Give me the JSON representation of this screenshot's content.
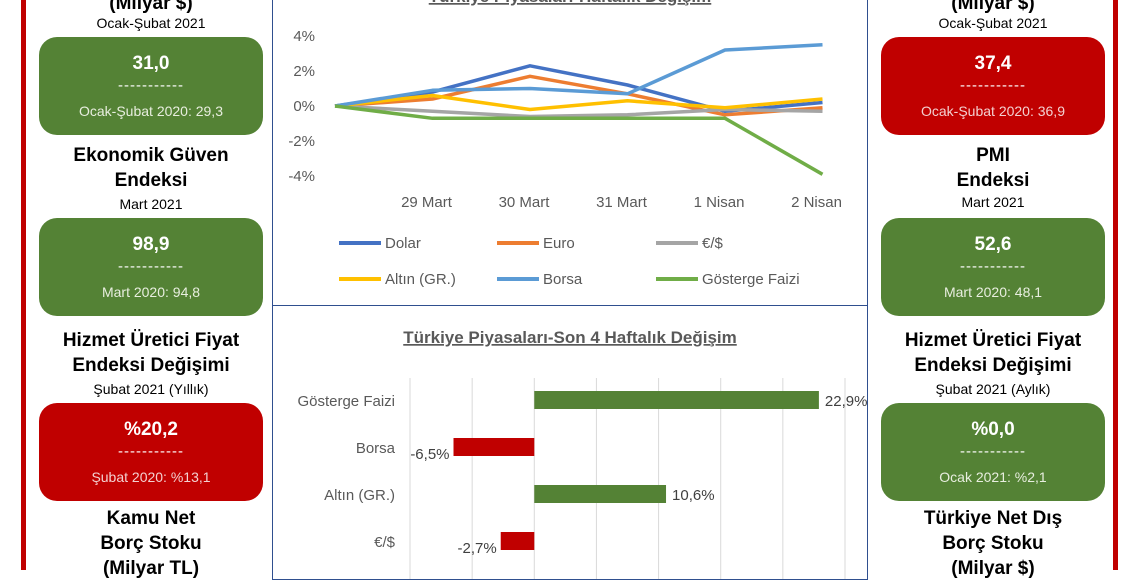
{
  "left": {
    "top_title": "(Milyar $)",
    "top_sub": "Ocak-Şubat 2021",
    "card1": {
      "value": "31,0",
      "dash": "-----------",
      "prev": "Ocak-Şubat 2020: 29,3",
      "color": "#548235"
    },
    "title2a": "Ekonomik Güven",
    "title2b": "Endeksi",
    "sub2": "Mart 2021",
    "card2": {
      "value": "98,9",
      "dash": "-----------",
      "prev": "Mart 2020: 94,8",
      "color": "#548235"
    },
    "title3a": "Hizmet Üretici Fiyat",
    "title3b": "Endeksi Değişimi",
    "sub3": "Şubat 2021 (Yıllık)",
    "card3": {
      "value": "%20,2",
      "dash": "-----------",
      "prev": "Şubat 2020: %13,1",
      "color": "#c00000"
    },
    "title4a": "Kamu Net",
    "title4b": "Borç Stoku",
    "title4c": "(Milyar TL)"
  },
  "right": {
    "top_title": "(Milyar $)",
    "top_sub": "Ocak-Şubat 2021",
    "card1": {
      "value": "37,4",
      "dash": "-----------",
      "prev": "Ocak-Şubat 2020: 36,9",
      "color": "#c00000"
    },
    "title2a": "PMI",
    "title2b": "Endeksi",
    "sub2": "Mart 2021",
    "card2": {
      "value": "52,6",
      "dash": "-----------",
      "prev": "Mart 2020: 48,1",
      "color": "#548235"
    },
    "title3a": "Hizmet Üretici Fiyat",
    "title3b": "Endeksi Değişimi",
    "sub3": "Şubat 2021 (Aylık)",
    "card3": {
      "value": "%0,0",
      "dash": "-----------",
      "prev": "Ocak 2021: %2,1",
      "color": "#548235"
    },
    "title4a": "Türkiye Net Dış",
    "title4b": "Borç Stoku",
    "title4c": "(Milyar $)"
  },
  "chart_data": [
    {
      "type": "line",
      "title": "Türkiye Piyasaları-Haftalık Değişim",
      "x": [
        "",
        "29 Mart",
        "30 Mart",
        "31 Mart",
        "1 Nisan",
        "2 Nisan"
      ],
      "ylim": [
        -4,
        4
      ],
      "yticks": [
        "4%",
        "2%",
        "0%",
        "-2%",
        "-4%"
      ],
      "grid": false,
      "legend": "bottom",
      "series": [
        {
          "name": "Dolar",
          "color": "#4472c4",
          "values": [
            0,
            0.8,
            2.3,
            1.2,
            -0.3,
            0.2
          ]
        },
        {
          "name": "Euro",
          "color": "#ed7d31",
          "values": [
            0,
            0.4,
            1.7,
            0.7,
            -0.5,
            -0.1
          ]
        },
        {
          "name": "€/$",
          "color": "#a5a5a5",
          "values": [
            0,
            -0.3,
            -0.6,
            -0.5,
            -0.2,
            -0.3
          ]
        },
        {
          "name": "Altın (GR.)",
          "color": "#ffc000",
          "values": [
            0,
            0.6,
            -0.2,
            0.3,
            -0.1,
            0.4
          ]
        },
        {
          "name": "Borsa",
          "color": "#5b9bd5",
          "values": [
            0,
            0.9,
            1.0,
            0.7,
            3.2,
            3.5
          ]
        },
        {
          "name": "Gösterge Faizi",
          "color": "#70ad47",
          "values": [
            0,
            -0.7,
            -0.7,
            -0.7,
            -0.7,
            -3.9
          ]
        }
      ]
    },
    {
      "type": "bar",
      "orientation": "horizontal",
      "title": "Türkiye Piyasaları-Son 4 Haftalık Değişim",
      "categories": [
        "Gösterge Faizi",
        "Borsa",
        "Altın (GR.)",
        "€/$"
      ],
      "values": [
        22.9,
        -6.5,
        10.6,
        -2.7
      ],
      "labels": [
        "22,9%",
        "-6,5%",
        "10,6%",
        "-2,7%"
      ],
      "xlim": [
        -10,
        25
      ],
      "grid": true,
      "colors": {
        "positive": "#548235",
        "negative": "#c00000"
      }
    }
  ]
}
